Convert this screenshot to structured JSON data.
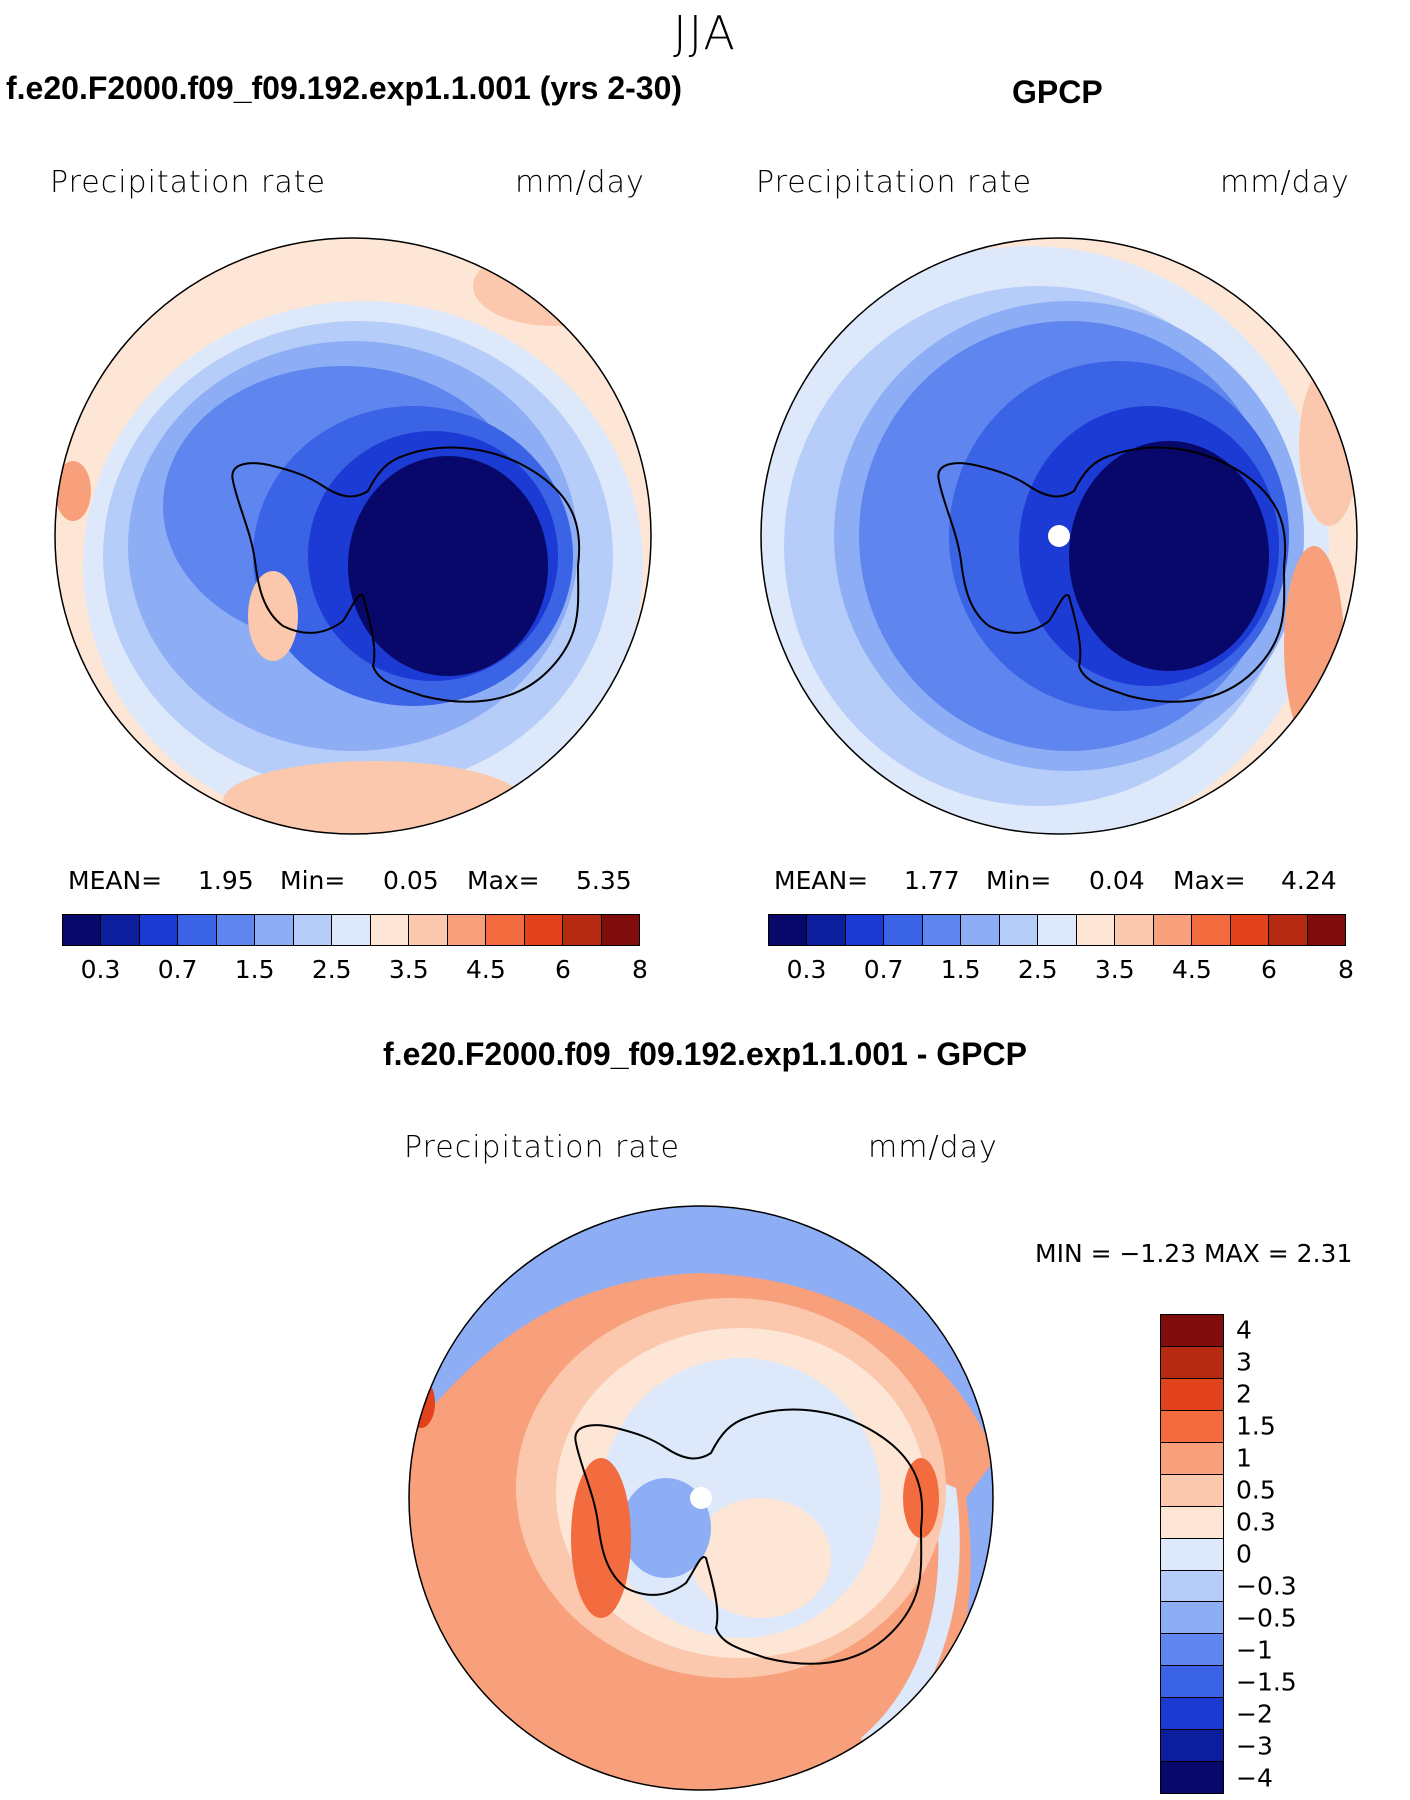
{
  "season": "JJA",
  "panels": [
    {
      "title": "f.e20.F2000.f09_f09.192.exp1.1.001 (yrs 2-30)",
      "variable": "Precipitation rate",
      "units": "mm/day",
      "mean_label": "MEAN=",
      "mean": "1.95",
      "min_label": "Min=",
      "min": "0.05",
      "max_label": "Max=",
      "max": "5.35"
    },
    {
      "title": "GPCP",
      "variable": "Precipitation rate",
      "units": "mm/day",
      "mean_label": "MEAN=",
      "mean": "1.77",
      "min_label": "Min=",
      "min": "0.04",
      "max_label": "Max=",
      "max": "4.24"
    }
  ],
  "diff": {
    "title": "f.e20.F2000.f09_f09.192.exp1.1.001 - GPCP",
    "variable": "Precipitation rate",
    "units": "mm/day",
    "minmax": "MIN =   −1.23 MAX =     2.31"
  },
  "colorbar": {
    "colors": [
      "#08086b",
      "#0c1d9e",
      "#1c3ad4",
      "#3a63e6",
      "#5f86ee",
      "#8dadf5",
      "#b7cdf9",
      "#dde9fb",
      "#fde6d6",
      "#fbc8ae",
      "#f7a07b",
      "#f36c3f",
      "#e2431c",
      "#b62a12",
      "#7e0d0b"
    ],
    "ticks": [
      "0.3",
      "0.7",
      "1.5",
      "2.5",
      "3.5",
      "4.5",
      "6",
      "8"
    ]
  },
  "diff_colorbar": {
    "colors": [
      "#7e0d0b",
      "#b62a12",
      "#e2431c",
      "#f36c3f",
      "#f7a07b",
      "#fbc8ae",
      "#fde6d6",
      "#dde9fb",
      "#b7cdf9",
      "#8dadf5",
      "#5f86ee",
      "#3a63e6",
      "#1c3ad4",
      "#0c1d9e",
      "#08086b"
    ],
    "ticks": [
      "4",
      "3",
      "2",
      "1.5",
      "1",
      "0.5",
      "0.3",
      "0",
      "−0.3",
      "−0.5",
      "−1",
      "−1.5",
      "−2",
      "−3",
      "−4"
    ]
  }
}
